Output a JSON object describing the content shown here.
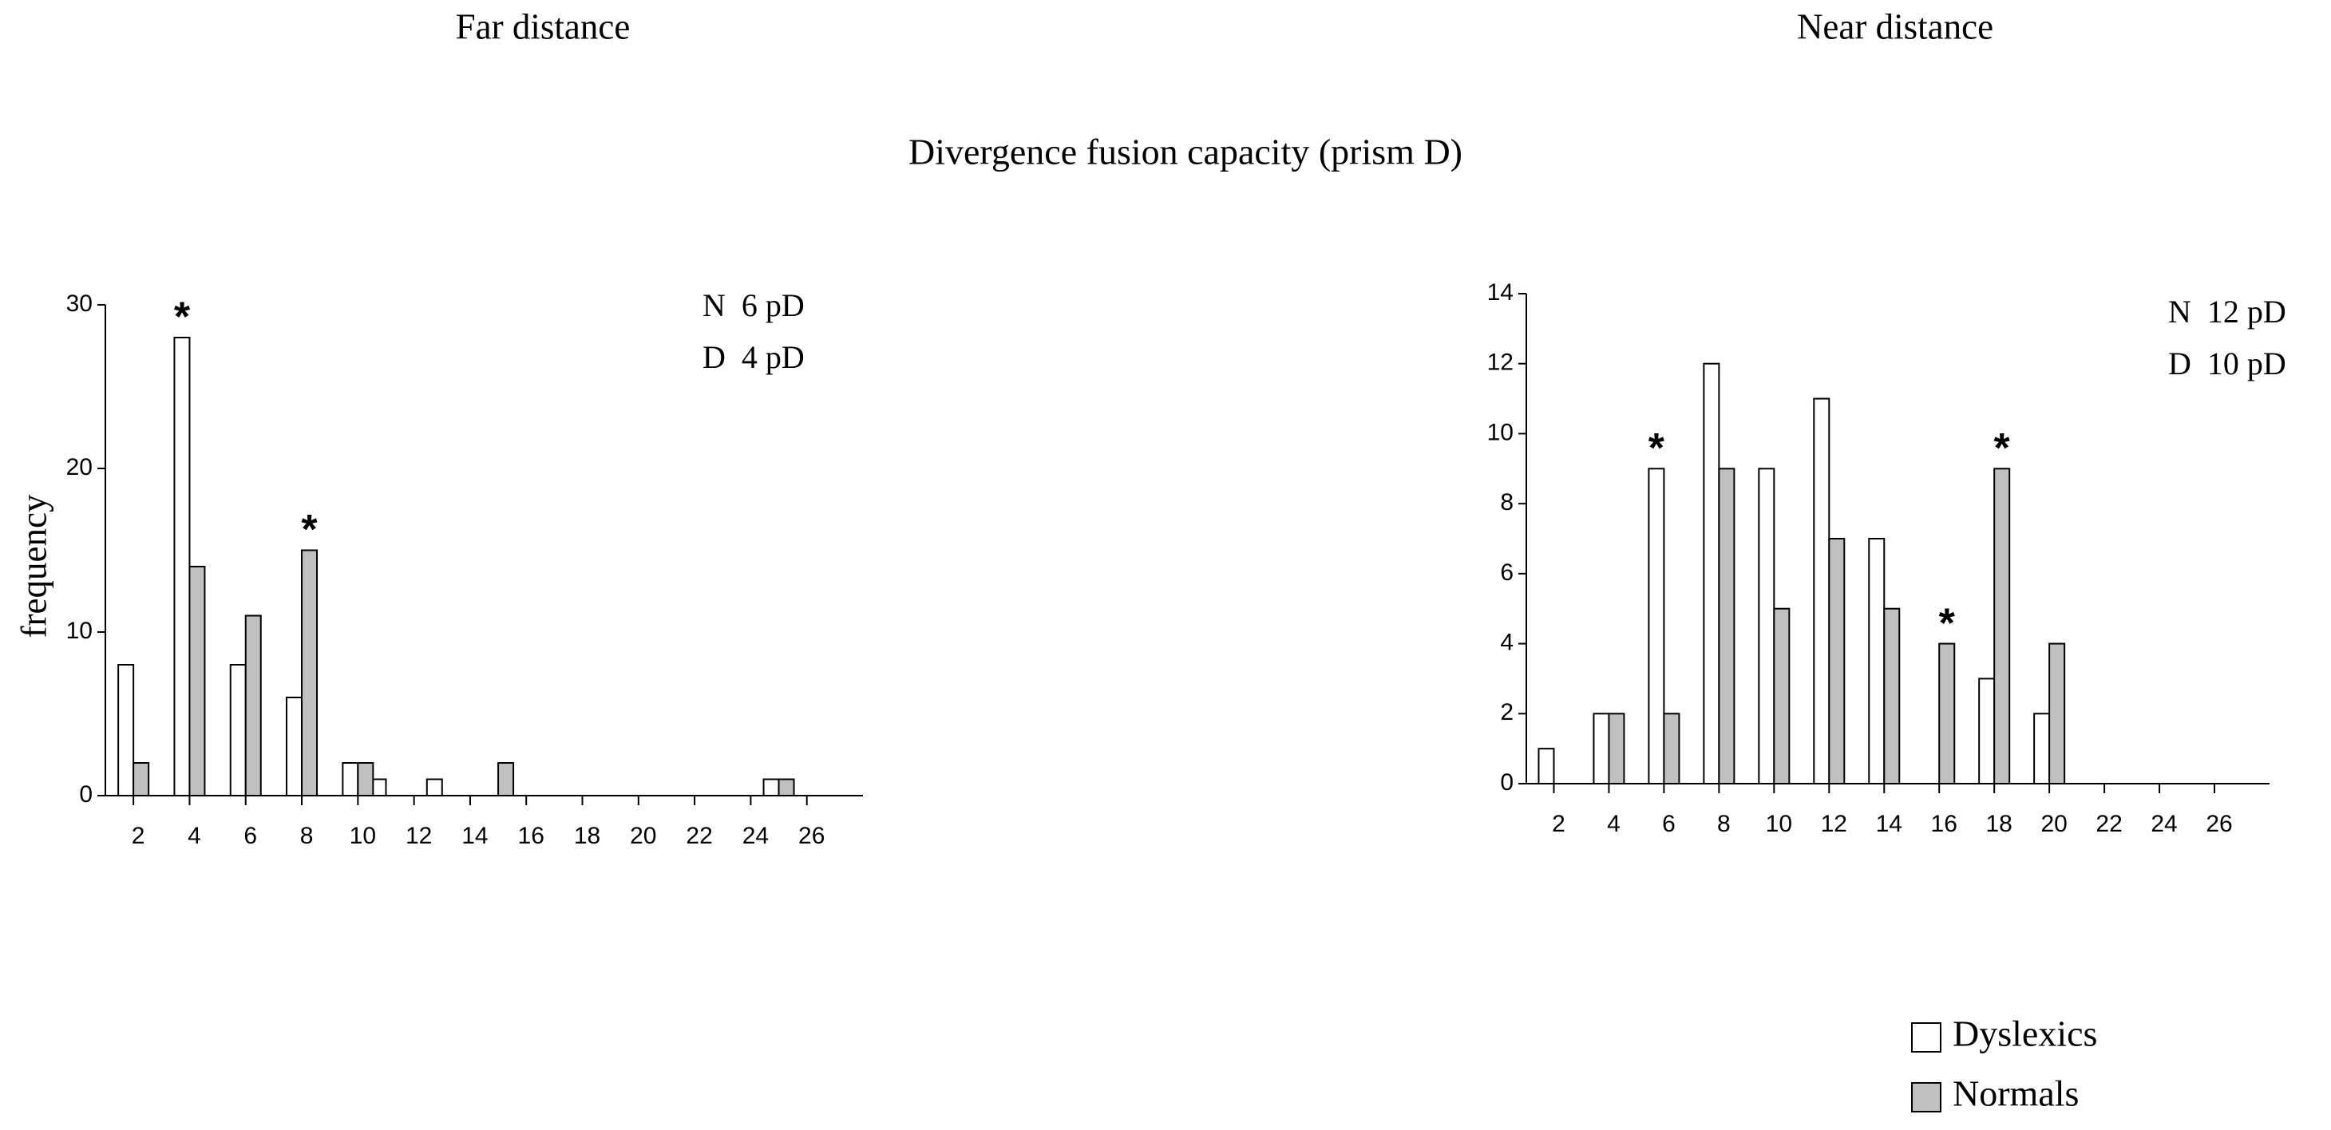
{
  "title": "Divergence fusion capacity (prism D)",
  "chart_data": [
    {
      "type": "bar",
      "title": "Far distance",
      "ylabel": "frequency",
      "x": [
        2,
        4,
        6,
        8,
        10,
        11,
        13,
        15,
        25
      ],
      "series": [
        {
          "name": "Dyslexics",
          "color": "#ffffff",
          "values": [
            8,
            28,
            8,
            6,
            2,
            1,
            1,
            0,
            1
          ]
        },
        {
          "name": "Normals",
          "color": "#c0c0c0",
          "values": [
            2,
            14,
            11,
            15,
            2,
            0,
            0,
            2,
            1
          ]
        }
      ],
      "xlim": [
        1,
        28
      ],
      "xticks": [
        2,
        4,
        6,
        8,
        10,
        12,
        14,
        16,
        18,
        20,
        22,
        24,
        26
      ],
      "ylim": [
        0,
        30
      ],
      "yticks": [
        0,
        10,
        20,
        30
      ],
      "notes": [
        "N  6 pD",
        "D  4 pD"
      ],
      "annotations": [
        {
          "text": "*",
          "x": 4,
          "y": 28,
          "series": 0
        },
        {
          "text": "*",
          "x": 8,
          "y": 15,
          "series": 1
        }
      ]
    },
    {
      "type": "bar",
      "title": "Near distance",
      "x": [
        2,
        4,
        6,
        8,
        10,
        12,
        14,
        16,
        18,
        20
      ],
      "series": [
        {
          "name": "Dyslexics",
          "color": "#ffffff",
          "values": [
            1,
            2,
            9,
            12,
            9,
            11,
            7,
            0,
            3,
            2
          ]
        },
        {
          "name": "Normals",
          "color": "#c0c0c0",
          "values": [
            0,
            2,
            2,
            9,
            5,
            7,
            5,
            4,
            9,
            4
          ]
        }
      ],
      "xlim": [
        1,
        28
      ],
      "xticks": [
        2,
        4,
        6,
        8,
        10,
        12,
        14,
        16,
        18,
        20,
        22,
        24,
        26
      ],
      "ylim": [
        0,
        14
      ],
      "yticks": [
        0,
        2,
        4,
        6,
        8,
        10,
        12,
        14
      ],
      "notes": [
        "N  12 pD",
        "D  10 pD"
      ],
      "annotations": [
        {
          "text": "*",
          "x": 6,
          "y": 9,
          "series": 0
        },
        {
          "text": "*",
          "x": 16,
          "y": 4,
          "series": 1
        },
        {
          "text": "*",
          "x": 18,
          "y": 9,
          "series": 1
        }
      ]
    }
  ]
}
